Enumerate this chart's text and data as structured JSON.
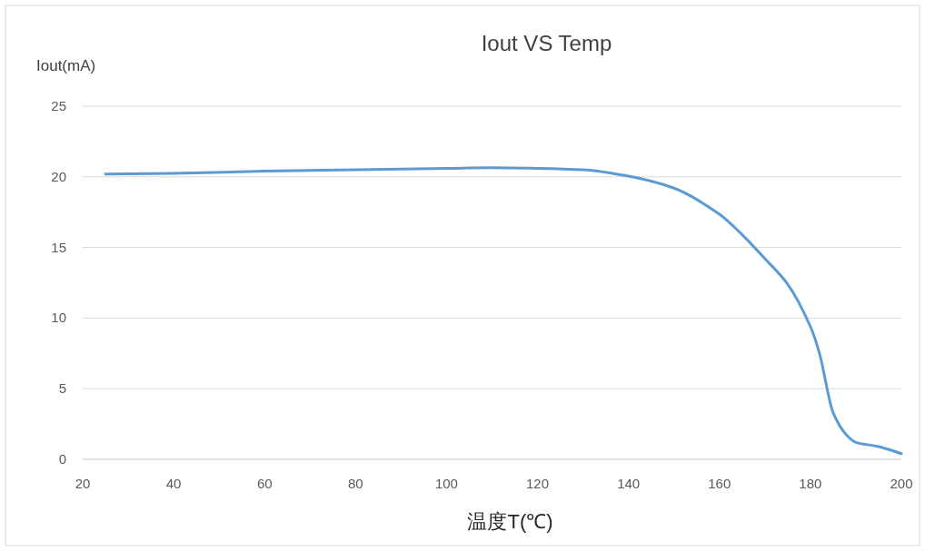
{
  "chart_data": {
    "type": "line",
    "title": "Iout  VS  Temp",
    "xlabel": "温度T(℃)",
    "ylabel": "Iout(mA)",
    "xlim": [
      20,
      200
    ],
    "xticks": [
      20,
      40,
      60,
      80,
      100,
      120,
      140,
      160,
      180,
      200
    ],
    "ylim": [
      0,
      25
    ],
    "yticks": [
      0,
      5,
      10,
      15,
      20,
      25
    ],
    "grid": "y",
    "marker": "none",
    "line_style": "solid",
    "series": [
      {
        "color": "#5b9bd5",
        "x": [
          25,
          40,
          60,
          80,
          100,
          110,
          120,
          130,
          140,
          150,
          160,
          165,
          170,
          175,
          180,
          182,
          185,
          188,
          190,
          195,
          200
        ],
        "values": [
          20.2,
          20.25,
          20.4,
          20.5,
          20.6,
          20.65,
          20.6,
          20.5,
          20.05,
          19.2,
          17.35,
          15.9,
          14.2,
          12.4,
          9.4,
          7.5,
          3.3,
          1.7,
          1.2,
          0.9,
          0.4
        ]
      }
    ]
  }
}
